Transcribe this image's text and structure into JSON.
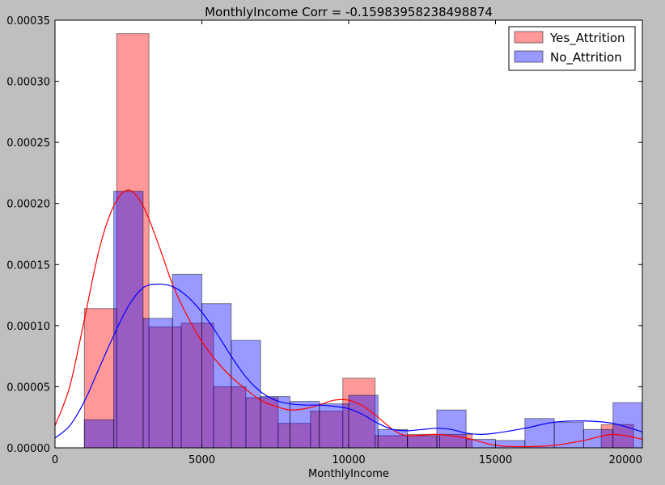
{
  "chart_data": {
    "type": "histogram",
    "title": "MonthlyIncome Corr = -0.15983958238498874",
    "xlabel": "MonthlyIncome",
    "ylabel": "",
    "xlim": [
      0,
      20000
    ],
    "ylim": [
      0,
      0.00035
    ],
    "x_ticks": [
      0,
      5000,
      10000,
      15000,
      20000
    ],
    "x_tick_labels": [
      "0",
      "5000",
      "10000",
      "15000",
      "20000"
    ],
    "y_ticks": [
      0,
      5e-05,
      0.0001,
      0.00015,
      0.0002,
      0.00025,
      0.0003,
      0.00035
    ],
    "y_tick_labels": [
      "0.00000",
      "0.00005",
      "0.00010",
      "0.00015",
      "0.00020",
      "0.00025",
      "0.00030",
      "0.00035"
    ],
    "grid": false,
    "legend_position": "top-right",
    "series": [
      {
        "name": "Yes_Attrition",
        "color": "#ff0000",
        "bin_edges": [
          1000,
          2100,
          3200,
          4300,
          5400,
          6500,
          7600,
          8700,
          9800,
          10900,
          12000,
          13100,
          14200,
          15300,
          16400,
          17500,
          18600,
          19700
        ],
        "density": [
          0.000114,
          0.000339,
          9.9e-05,
          0.000102,
          5e-05,
          4.1e-05,
          2e-05,
          3e-05,
          5.7e-05,
          1e-05,
          1.1e-05,
          1.1e-05,
          0,
          0,
          0,
          0,
          1.9e-05
        ],
        "kde": [
          [
            0,
            1.8e-05
          ],
          [
            500,
            5e-05
          ],
          [
            1000,
            0.000105
          ],
          [
            1500,
            0.000162
          ],
          [
            2000,
            0.000198
          ],
          [
            2500,
            0.000211
          ],
          [
            3000,
            0.000198
          ],
          [
            3500,
            0.000168
          ],
          [
            4000,
            0.000134
          ],
          [
            4500,
            0.000108
          ],
          [
            5000,
            8.7e-05
          ],
          [
            5500,
            7.1e-05
          ],
          [
            6000,
            5.8e-05
          ],
          [
            6500,
            4.8e-05
          ],
          [
            7000,
            3.9e-05
          ],
          [
            7500,
            3.4e-05
          ],
          [
            8000,
            3.1e-05
          ],
          [
            8500,
            3.2e-05
          ],
          [
            9000,
            3.5e-05
          ],
          [
            9500,
            3.9e-05
          ],
          [
            10000,
            3.9e-05
          ],
          [
            10500,
            3.4e-05
          ],
          [
            11000,
            2.5e-05
          ],
          [
            11500,
            1.5e-05
          ],
          [
            12000,
            1e-05
          ],
          [
            13000,
            1.1e-05
          ],
          [
            14000,
            8e-06
          ],
          [
            15000,
            2e-06
          ],
          [
            16000,
            1e-06
          ],
          [
            17000,
            2e-06
          ],
          [
            18000,
            6e-06
          ],
          [
            19000,
            1.1e-05
          ],
          [
            20000,
            7e-06
          ]
        ]
      },
      {
        "name": "No_Attrition",
        "color": "#0000ff",
        "bin_edges": [
          1000,
          2000,
          3000,
          4000,
          5000,
          6000,
          7000,
          8000,
          9000,
          10000,
          11000,
          12000,
          13000,
          14000,
          15000,
          16000,
          17000,
          18000,
          19000,
          20000
        ],
        "density": [
          2.3e-05,
          0.00021,
          0.000106,
          0.000142,
          0.000118,
          8.8e-05,
          4.2e-05,
          3.8e-05,
          3.6e-05,
          4.3e-05,
          1.5e-05,
          1e-05,
          3.1e-05,
          7e-06,
          6e-06,
          2.4e-05,
          2.1e-05,
          1.5e-05,
          3.7e-05
        ],
        "kde": [
          [
            0,
            8e-06
          ],
          [
            500,
            1.8e-05
          ],
          [
            1000,
            3.8e-05
          ],
          [
            1500,
            6.5e-05
          ],
          [
            2000,
            9.2e-05
          ],
          [
            2500,
            0.000116
          ],
          [
            3000,
            0.000131
          ],
          [
            3500,
            0.000134
          ],
          [
            4000,
            0.000132
          ],
          [
            4500,
            0.000124
          ],
          [
            5000,
            0.000111
          ],
          [
            5500,
            9.4e-05
          ],
          [
            6000,
            7.5e-05
          ],
          [
            6500,
            5.8e-05
          ],
          [
            7000,
            4.6e-05
          ],
          [
            7500,
            3.9e-05
          ],
          [
            8000,
            3.6e-05
          ],
          [
            8500,
            3.5e-05
          ],
          [
            9000,
            3.5e-05
          ],
          [
            9500,
            3.4e-05
          ],
          [
            10000,
            3.2e-05
          ],
          [
            10500,
            2.7e-05
          ],
          [
            11000,
            2e-05
          ],
          [
            11500,
            1.5e-05
          ],
          [
            12000,
            1.4e-05
          ],
          [
            12500,
            1.5e-05
          ],
          [
            13000,
            1.6e-05
          ],
          [
            13500,
            1.5e-05
          ],
          [
            14000,
            1.2e-05
          ],
          [
            14500,
            1.1e-05
          ],
          [
            15000,
            1.2e-05
          ],
          [
            16000,
            1.6e-05
          ],
          [
            17000,
            2.1e-05
          ],
          [
            18000,
            2.2e-05
          ],
          [
            19000,
            2e-05
          ],
          [
            20000,
            1.3e-05
          ]
        ]
      }
    ]
  }
}
